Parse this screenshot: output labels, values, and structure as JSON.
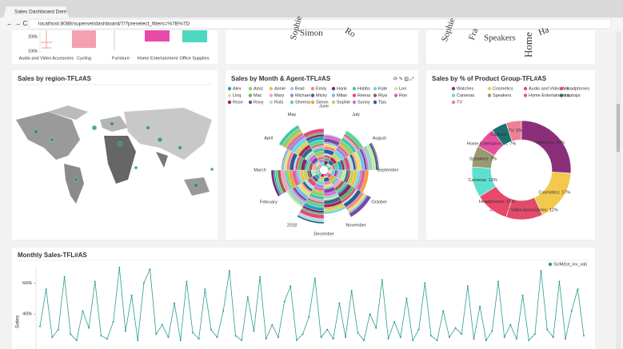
{
  "browser": {
    "tab": "Sales Dashboard Dem",
    "url": "localhost:8088/superset/dashboard/7/?preselect_filters=%7B%7D"
  },
  "box_panel": {
    "categories": [
      "Audio and Video Accesories",
      "Cycling",
      "Furniture",
      "Home Entertainment",
      "Office Supplies"
    ],
    "yticks": [
      "200k",
      "100k"
    ]
  },
  "cloud_agents": {
    "words": [
      "Sophie",
      "Simon",
      "Ro"
    ]
  },
  "cloud_products": {
    "words": [
      "Sophie",
      "Fra",
      "Speakers",
      "Home",
      "Ha"
    ]
  },
  "map_panel": {
    "title": "Sales by region-TFL#AS"
  },
  "polar_panel": {
    "title": "Sales by Month & Agent-TFL#AS",
    "legend": [
      {
        "name": "Alex",
        "color": "#1f9fbf"
      },
      {
        "name": "Amiz",
        "color": "#8fd06b"
      },
      {
        "name": "Annie",
        "color": "#f0c040"
      },
      {
        "name": "Brad",
        "color": "#9ad2c8"
      },
      {
        "name": "Emily",
        "color": "#f08a8a"
      },
      {
        "name": "Hank",
        "color": "#7b2a6e"
      },
      {
        "name": "Hobbs",
        "color": "#3cc6b0"
      },
      {
        "name": "Kate",
        "color": "#6ed8e0"
      },
      {
        "name": "Leo",
        "color": "#c8e8a0"
      },
      {
        "name": "Linq",
        "color": "#e8e070"
      },
      {
        "name": "Mac",
        "color": "#5cb85c"
      },
      {
        "name": "Mary",
        "color": "#f2a0c8"
      },
      {
        "name": "Michael",
        "color": "#9b8bd8"
      },
      {
        "name": "Micky",
        "color": "#2e6e8e"
      },
      {
        "name": "Milan",
        "color": "#70c0f0"
      },
      {
        "name": "Reena",
        "color": "#e04a80"
      },
      {
        "name": "Riya",
        "color": "#a06040"
      },
      {
        "name": "Ron",
        "color": "#e060a0"
      },
      {
        "name": "Rose",
        "color": "#b02050"
      },
      {
        "name": "Roxy",
        "color": "#7a4aa0"
      },
      {
        "name": "Rots",
        "color": "#b0e0d0"
      },
      {
        "name": "Sheena",
        "color": "#60d0a0"
      },
      {
        "name": "Simon",
        "color": "#f0a030"
      },
      {
        "name": "Sophie",
        "color": "#c0d060"
      },
      {
        "name": "Sunny",
        "color": "#d070d0"
      },
      {
        "name": "Tips",
        "color": "#2a5a9a"
      }
    ],
    "months": [
      "June",
      "July",
      "August",
      "September",
      "October",
      "November",
      "December",
      "2018",
      "February",
      "March",
      "April",
      "May"
    ]
  },
  "donut_panel": {
    "chart_data": {
      "type": "donut",
      "title": "Sales by % of Product Group-TFL#AS",
      "legend": [
        "Watches",
        "Cosmetics",
        "Audio and Video Acc...",
        "Headphones",
        "Cameras",
        "Speakers",
        "Home Entertainment",
        "Laptops",
        "TV"
      ],
      "values": [
        26,
        17,
        12,
        11,
        10,
        7,
        7,
        5,
        5
      ],
      "value_labels": [
        "Watches: 26%",
        "Cosmetics: 17%",
        "Audio and Video Accessories: 12%",
        "Headphones: 11%",
        "Cameras: 10%",
        "Speakers: 7%",
        "Home Entertainment: 7%",
        "Laptops: 5%",
        "TV: 5%"
      ],
      "colors": [
        "#8b2f7a",
        "#f2c94c",
        "#e24b6a",
        "#e8486a",
        "#5ee0cf",
        "#9a9a70",
        "#e64f9e",
        "#1f6f6f",
        "#ef7f95"
      ]
    }
  },
  "line_panel": {
    "chart_data": {
      "type": "line",
      "title": "Monthly Sales-TFL#AS",
      "ylabel": "Sales",
      "ylim": [
        200000,
        700000
      ],
      "yticks": [
        {
          "value": 400000,
          "label": "400k"
        },
        {
          "value": 600000,
          "label": "600k"
        }
      ],
      "series": [
        {
          "name": "SUM(tot_inv_val)",
          "color": "#2a9d8f",
          "values": [
            320000,
            560000,
            250000,
            300000,
            640000,
            270000,
            230000,
            420000,
            310000,
            610000,
            260000,
            240000,
            350000,
            700000,
            290000,
            520000,
            230000,
            600000,
            690000,
            270000,
            330000,
            250000,
            470000,
            230000,
            610000,
            280000,
            240000,
            560000,
            300000,
            250000,
            420000,
            680000,
            260000,
            230000,
            510000,
            290000,
            640000,
            240000,
            330000,
            250000,
            480000,
            580000,
            230000,
            270000,
            380000,
            630000,
            250000,
            300000,
            240000,
            470000,
            250000,
            550000,
            280000,
            230000,
            400000,
            310000,
            620000,
            240000,
            350000,
            250000,
            500000,
            230000,
            300000,
            600000,
            260000,
            230000,
            420000,
            250000,
            310000,
            270000,
            580000,
            240000,
            450000,
            230000,
            290000,
            610000,
            250000,
            330000,
            240000,
            520000,
            230000,
            270000,
            680000,
            300000,
            250000,
            610000,
            240000,
            420000,
            560000,
            260000
          ]
        }
      ]
    }
  }
}
